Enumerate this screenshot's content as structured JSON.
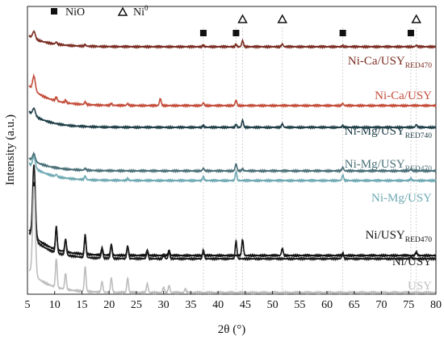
{
  "chart_data": {
    "type": "line",
    "xlabel": "2θ (°)",
    "ylabel": "Intensity (a.u.)",
    "xlim": [
      5,
      80
    ],
    "xticks": [
      "5",
      "10",
      "15",
      "20",
      "25",
      "30",
      "35",
      "40",
      "45",
      "50",
      "55",
      "60",
      "65",
      "70",
      "75",
      "80"
    ],
    "legend": {
      "placement": "top-left",
      "items": [
        {
          "marker": "square",
          "main": "NiO",
          "sup": ""
        },
        {
          "marker": "triangle",
          "main": "Ni",
          "sup": "0"
        }
      ]
    },
    "reference_lines": {
      "NiO": [
        37.3,
        43.3,
        62.9,
        75.4
      ],
      "Ni0": [
        44.5,
        51.8,
        76.4
      ]
    },
    "series": [
      {
        "name": "Ni-Ca/USY",
        "sub": "RED470",
        "color": "#7a2d22",
        "peaks": [
          [
            6.2,
            4
          ],
          [
            10.3,
            1.2
          ],
          [
            15.6,
            0.8
          ],
          [
            37.3,
            0.8
          ],
          [
            43.3,
            1.2
          ],
          [
            44.5,
            3.5
          ],
          [
            51.8,
            1.5
          ],
          [
            62.9,
            0.5
          ],
          [
            76.4,
            0.8
          ]
        ]
      },
      {
        "name": "Ni-Ca/USY",
        "sub": "",
        "color": "#c44d3a",
        "peaks": [
          [
            6.2,
            8
          ],
          [
            10.3,
            2.2
          ],
          [
            12.0,
            1.2
          ],
          [
            15.6,
            1.5
          ],
          [
            20.4,
            1
          ],
          [
            23.4,
            1
          ],
          [
            29.4,
            4
          ],
          [
            37.3,
            1.5
          ],
          [
            43.3,
            3
          ],
          [
            62.9,
            1.2
          ]
        ]
      },
      {
        "name": "Ni-Mg/USY",
        "sub": "RED740",
        "color": "#203f48",
        "peaks": [
          [
            6.2,
            4
          ],
          [
            37.3,
            1
          ],
          [
            43.3,
            1.5
          ],
          [
            44.5,
            4
          ],
          [
            51.8,
            2
          ],
          [
            62.9,
            0.8
          ],
          [
            76.4,
            1.5
          ]
        ]
      },
      {
        "name": "Ni-Mg/USY",
        "sub": "RED470",
        "color": "#4a6f77",
        "peaks": [
          [
            6.2,
            4
          ],
          [
            15.6,
            1
          ],
          [
            37.3,
            1.5
          ],
          [
            43.3,
            4
          ],
          [
            44.5,
            1
          ],
          [
            62.9,
            2
          ],
          [
            75.4,
            1
          ]
        ]
      },
      {
        "name": "Ni-Mg/USY",
        "sub": "",
        "color": "#6fa9b3",
        "peaks": [
          [
            6.2,
            6
          ],
          [
            10.3,
            1.2
          ],
          [
            15.6,
            2
          ],
          [
            23.4,
            1
          ],
          [
            37.3,
            2
          ],
          [
            43.3,
            5
          ],
          [
            62.9,
            3
          ],
          [
            75.4,
            1
          ]
        ]
      },
      {
        "name": "Ni/USY",
        "sub": "RED470",
        "color": "#111111",
        "peaks": [
          [
            6.2,
            30
          ],
          [
            10.3,
            12
          ],
          [
            12.0,
            7
          ],
          [
            15.6,
            10
          ],
          [
            18.7,
            4
          ],
          [
            20.4,
            6
          ],
          [
            23.4,
            5
          ],
          [
            27.0,
            3
          ],
          [
            31.0,
            3
          ],
          [
            37.3,
            1
          ],
          [
            44.5,
            9
          ],
          [
            51.8,
            4
          ],
          [
            76.4,
            2
          ]
        ]
      },
      {
        "name": "Ni/USY",
        "sub": "",
        "color": "#1a1a1a",
        "peaks": [
          [
            6.2,
            42
          ],
          [
            10.3,
            15
          ],
          [
            12.0,
            9
          ],
          [
            15.6,
            13
          ],
          [
            18.7,
            5
          ],
          [
            20.4,
            8
          ],
          [
            23.4,
            7
          ],
          [
            27.0,
            4
          ],
          [
            30.0,
            2.5
          ],
          [
            31.0,
            3.5
          ],
          [
            37.3,
            5
          ],
          [
            43.3,
            10
          ],
          [
            62.9,
            3.5
          ],
          [
            75.4,
            1
          ]
        ]
      },
      {
        "name": "USY",
        "sub": "",
        "color": "#bdbdbd",
        "peaks": [
          [
            6.2,
            50
          ],
          [
            10.3,
            16
          ],
          [
            12.0,
            9
          ],
          [
            15.6,
            14
          ],
          [
            18.7,
            6
          ],
          [
            20.4,
            8
          ],
          [
            23.4,
            8
          ],
          [
            27.0,
            5
          ],
          [
            30.0,
            3
          ],
          [
            31.0,
            4
          ],
          [
            34.0,
            2
          ]
        ]
      }
    ]
  }
}
